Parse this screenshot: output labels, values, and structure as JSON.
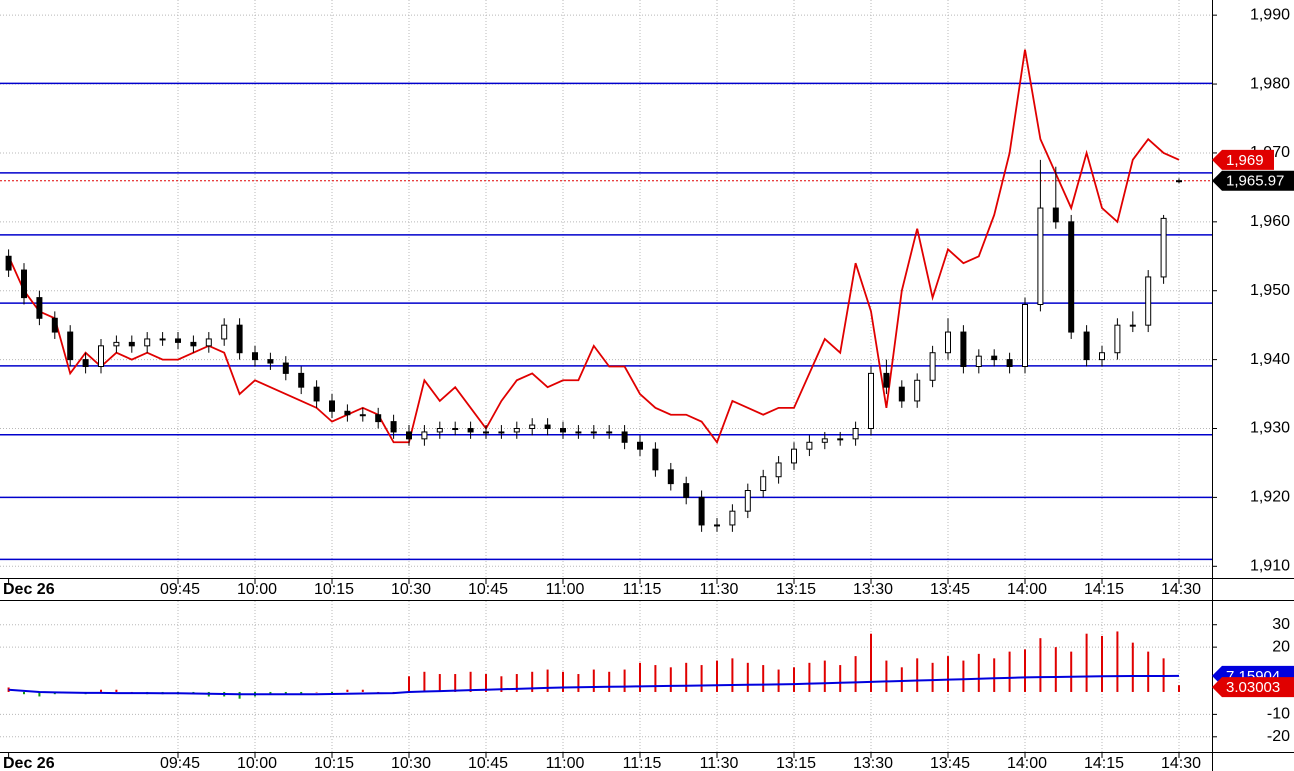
{
  "chart_data": [
    {
      "type": "candlestick",
      "categories": [
        "Dec 26",
        null,
        null,
        null,
        null,
        null,
        null,
        null,
        null,
        null,
        null,
        "09:45",
        null,
        null,
        null,
        null,
        "10:00",
        null,
        null,
        null,
        null,
        "10:15",
        null,
        null,
        null,
        null,
        "10:30",
        null,
        null,
        null,
        null,
        "10:45",
        null,
        null,
        null,
        null,
        "11:00",
        null,
        null,
        null,
        null,
        "11:15",
        null,
        null,
        null,
        null,
        "11:30",
        null,
        null,
        null,
        null,
        "13:15",
        null,
        null,
        null,
        null,
        "13:30",
        null,
        null,
        null,
        null,
        "13:45",
        null,
        null,
        null,
        null,
        "14:00",
        null,
        null,
        null,
        null,
        "14:15",
        null,
        null,
        null,
        null,
        "14:30"
      ],
      "open": [
        1955,
        1953,
        1949,
        1946,
        1944,
        1940,
        1939,
        1942,
        1942.5,
        1942,
        1943,
        1943,
        1942.5,
        1942,
        1943,
        1945,
        1941,
        1940,
        1939.5,
        1938,
        1936,
        1934,
        1932.5,
        1932,
        1932,
        1931,
        1929.5,
        1928.5,
        1929.5,
        1930,
        1930,
        1929.5,
        1929.5,
        1929.5,
        1930,
        1930.5,
        1930,
        1929.5,
        1929.5,
        1929.5,
        1929.5,
        1928,
        1927,
        1924,
        1922,
        1920,
        1916,
        1916,
        1918,
        1921,
        1923,
        1925,
        1927,
        1928,
        1928.5,
        1928.5,
        1930,
        1938,
        1936,
        1934,
        1937,
        1941,
        1944,
        1939,
        1940.5,
        1940,
        1939,
        1948,
        1962,
        1960,
        1944,
        1940,
        1941,
        1945,
        1945,
        1952,
        1965.97
      ],
      "high": [
        1956,
        1954,
        1950,
        1947,
        1945,
        1941,
        1943,
        1943.5,
        1943.5,
        1944,
        1944,
        1944,
        1943.5,
        1944,
        1946,
        1946,
        1942,
        1941,
        1940.5,
        1939,
        1937,
        1935,
        1933.5,
        1933,
        1933,
        1932,
        1930.5,
        1930.5,
        1931,
        1931,
        1931,
        1930.5,
        1930.5,
        1931,
        1931.5,
        1931.5,
        1931,
        1930.5,
        1930.5,
        1930.5,
        1930.5,
        1929,
        1928,
        1925,
        1923,
        1921,
        1917,
        1919,
        1922,
        1924,
        1926,
        1928,
        1929,
        1929.5,
        1929.5,
        1931,
        1939,
        1940,
        1937,
        1938,
        1942,
        1946,
        1945,
        1941.5,
        1941.5,
        1941,
        1949,
        1969,
        1968,
        1961,
        1945,
        1942,
        1946,
        1947,
        1953,
        1961,
        1966.3
      ],
      "low": [
        1952,
        1948,
        1945,
        1943,
        1939,
        1938,
        1938,
        1941,
        1941,
        1941,
        1942,
        1941.5,
        1941,
        1941,
        1942,
        1940,
        1939,
        1938.5,
        1937,
        1935,
        1933,
        1931.5,
        1931,
        1931,
        1930,
        1928.5,
        1927.5,
        1927.5,
        1928.5,
        1929,
        1928.5,
        1928.5,
        1928.5,
        1928.5,
        1929,
        1929,
        1928.5,
        1928.5,
        1928.5,
        1928.5,
        1927,
        1926,
        1923,
        1921,
        1919,
        1915,
        1915,
        1915,
        1917,
        1920,
        1922,
        1924,
        1926,
        1927,
        1927.5,
        1927.5,
        1929,
        1935,
        1933,
        1933,
        1936,
        1940,
        1938,
        1938,
        1939,
        1938,
        1938,
        1947,
        1959,
        1943,
        1939,
        1939,
        1940,
        1944,
        1944,
        1951,
        1965.6
      ],
      "close": [
        1953,
        1949,
        1946,
        1944,
        1940,
        1939,
        1942,
        1942.5,
        1942,
        1943,
        1943,
        1942.5,
        1942,
        1943,
        1945,
        1941,
        1940,
        1939.5,
        1938,
        1936,
        1934,
        1932.5,
        1932,
        1932,
        1931,
        1929.5,
        1928.5,
        1929.5,
        1930,
        1930,
        1929.5,
        1929.5,
        1929.5,
        1930,
        1930.5,
        1930,
        1929.5,
        1929.5,
        1929.5,
        1929.5,
        1928,
        1927,
        1924,
        1922,
        1920,
        1916,
        1916,
        1918,
        1921,
        1923,
        1925,
        1927,
        1928,
        1928.5,
        1928.5,
        1930,
        1938,
        1936,
        1934,
        1937,
        1941,
        1944,
        1939,
        1940.5,
        1940,
        1939,
        1948,
        1962,
        1960,
        1944,
        1940,
        1941,
        1945,
        1945,
        1952,
        1960.5,
        1965.97
      ],
      "close_label": "1,965.97",
      "overlay": {
        "color": "#e00000",
        "last_label": "1,969",
        "values": [
          1955,
          1950,
          1947,
          1946,
          1938,
          1941,
          1939,
          1941,
          1940,
          1941,
          1940,
          1940,
          1941,
          1942,
          1941,
          1935,
          1937,
          1936,
          1935,
          1934,
          1933,
          1931,
          1932,
          1933,
          1932,
          1928,
          1928,
          1937,
          1934,
          1936,
          1933,
          1930,
          1934,
          1937,
          1938,
          1936,
          1937,
          1937,
          1942,
          1939,
          1939,
          1935,
          1933,
          1932,
          1932,
          1931,
          1928,
          1934,
          1933,
          1932,
          1933,
          1933,
          1938,
          1943,
          1941,
          1954,
          1947,
          1933,
          1950,
          1959,
          1949,
          1956,
          1954,
          1955,
          1961,
          1970,
          1985,
          1972,
          1967,
          1962,
          1970,
          1962,
          1960,
          1969,
          1972,
          1970,
          1969
        ]
      },
      "levels": [
        1980.1,
        1967.1,
        1958.1,
        1948.2,
        1939.1,
        1929.1,
        1920,
        1911
      ],
      "level_color": "#0000cc",
      "ylim": [
        1908.3,
        1992.2
      ],
      "yticks": [
        {
          "value": 1990,
          "label": "1,990"
        },
        {
          "value": 1980,
          "label": "1,980"
        },
        {
          "value": 1970,
          "label": "1,970"
        },
        {
          "value": 1960,
          "label": "1,960"
        },
        {
          "value": 1950,
          "label": "1,950"
        },
        {
          "value": 1940,
          "label": "1,940"
        },
        {
          "value": 1930,
          "label": "1,930"
        },
        {
          "value": 1920,
          "label": "1,920"
        },
        {
          "value": 1910,
          "label": "1,910"
        }
      ],
      "grid": true
    },
    {
      "type": "oscillator",
      "categories": [
        "Dec 26",
        null,
        null,
        null,
        null,
        null,
        null,
        null,
        null,
        null,
        null,
        "09:45",
        null,
        null,
        null,
        null,
        "10:00",
        null,
        null,
        null,
        null,
        "10:15",
        null,
        null,
        null,
        null,
        "10:30",
        null,
        null,
        null,
        null,
        "10:45",
        null,
        null,
        null,
        null,
        "11:00",
        null,
        null,
        null,
        null,
        "11:15",
        null,
        null,
        null,
        null,
        "11:30",
        null,
        null,
        null,
        null,
        "13:15",
        null,
        null,
        null,
        null,
        "13:30",
        null,
        null,
        null,
        null,
        "13:45",
        null,
        null,
        null,
        null,
        "14:00",
        null,
        null,
        null,
        null,
        "14:15",
        null,
        null,
        null,
        null,
        "14:30"
      ],
      "histogram": {
        "up_color": "#e00000",
        "down_color": "#119911",
        "last_label": "3.03003",
        "values": [
          2,
          -1,
          -2,
          -1,
          0,
          -1,
          1,
          1,
          0,
          -1,
          -1,
          -1,
          -1,
          -2,
          -2,
          -3,
          -2,
          -1,
          -1,
          -1,
          0,
          -1,
          1,
          1,
          0,
          0,
          7,
          9,
          8,
          8,
          9,
          8,
          7,
          8,
          9,
          10,
          9,
          8,
          10,
          9,
          10,
          13,
          12,
          11,
          13,
          12,
          14,
          15,
          13,
          12,
          10,
          11,
          13,
          14,
          12,
          16,
          26,
          14,
          11,
          15,
          13,
          16,
          14,
          17,
          15,
          18,
          19,
          24,
          20,
          18,
          26,
          25,
          27,
          22,
          18,
          15,
          3.03003
        ]
      },
      "line": {
        "color": "#0000dd",
        "last_label": "7.15904",
        "values": [
          1,
          0.5,
          0,
          -0.2,
          -0.3,
          -0.4,
          -0.4,
          -0.5,
          -0.5,
          -0.5,
          -0.6,
          -0.6,
          -0.7,
          -0.8,
          -0.9,
          -1,
          -1,
          -1,
          -1,
          -1,
          -1,
          -0.9,
          -0.8,
          -0.7,
          -0.6,
          -0.5,
          0,
          0.2,
          0.4,
          0.6,
          0.8,
          1,
          1.2,
          1.4,
          1.6,
          1.8,
          2,
          2.1,
          2.2,
          2.3,
          2.4,
          2.5,
          2.6,
          2.7,
          2.8,
          2.9,
          3,
          3.1,
          3.2,
          3.3,
          3.4,
          3.5,
          3.7,
          3.9,
          4.1,
          4.3,
          4.5,
          4.7,
          4.9,
          5.1,
          5.3,
          5.5,
          5.7,
          5.9,
          6.1,
          6.3,
          6.5,
          6.6,
          6.7,
          6.8,
          6.9,
          7,
          7.05,
          7.1,
          7.12,
          7.14,
          7.15904
        ]
      },
      "ylim": [
        -25,
        38.8
      ],
      "yticks": [
        30,
        20,
        -10,
        -20
      ],
      "grid": true
    }
  ]
}
